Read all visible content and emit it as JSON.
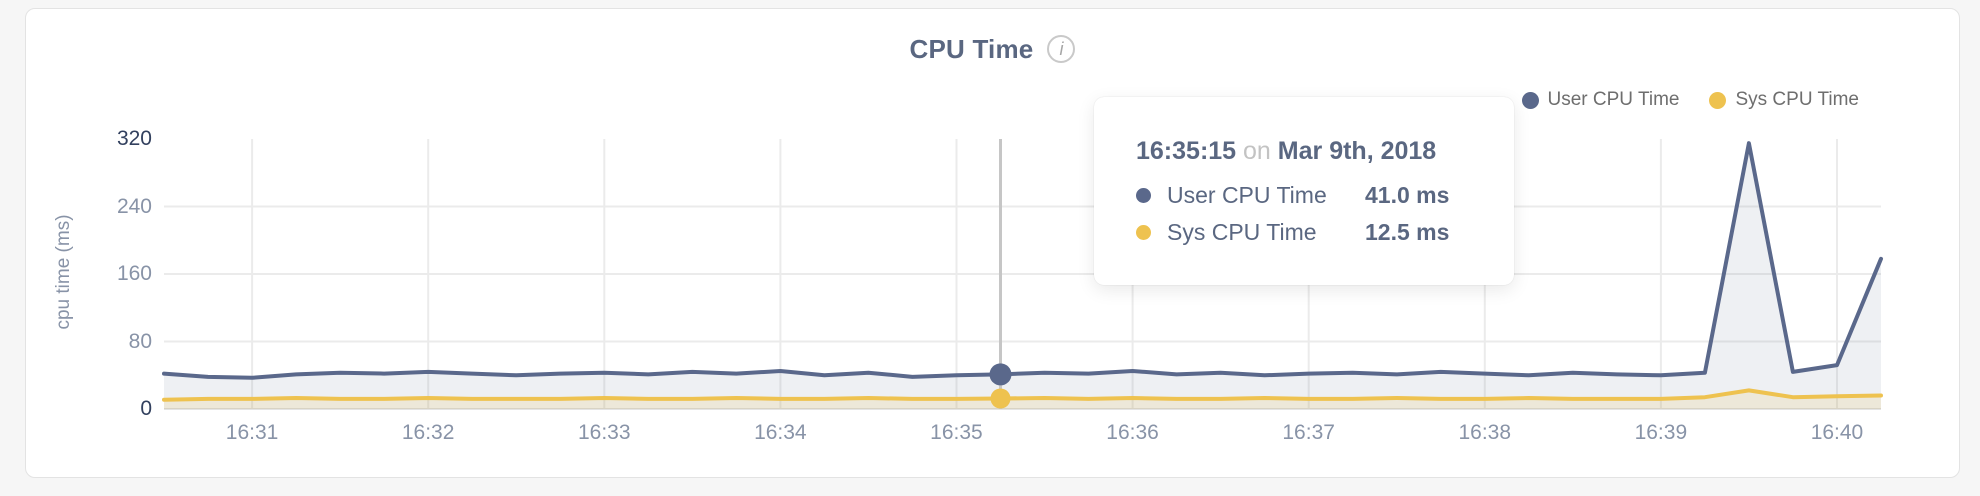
{
  "page": {
    "background": "#f6f6f6"
  },
  "header": {
    "title": "CPU Time",
    "info_icon": "info-circle-icon",
    "info_icon_glyph": "i"
  },
  "legend": {
    "items": [
      {
        "label": "User CPU Time",
        "color": "#5a688b"
      },
      {
        "label": "Sys CPU Time",
        "color": "#eec24f"
      }
    ]
  },
  "tooltip": {
    "time": "16:35:15",
    "connector": "on",
    "date": "Mar 9th, 2018",
    "rows": [
      {
        "label": "User CPU Time",
        "value": "41.0 ms",
        "color": "#5a688b"
      },
      {
        "label": "Sys CPU Time",
        "value": "12.5 ms",
        "color": "#eec24f"
      }
    ]
  },
  "chart_data": {
    "type": "area",
    "title": "CPU Time",
    "ylabel": "cpu time (ms)",
    "ylim": [
      0,
      320
    ],
    "y_ticks": [
      0,
      80,
      160,
      240,
      320
    ],
    "emphasized_y_ticks": [
      0,
      320
    ],
    "x_ticks": [
      "16:31",
      "16:32",
      "16:33",
      "16:34",
      "16:35",
      "16:36",
      "16:37",
      "16:38",
      "16:39",
      "16:40"
    ],
    "x_tick_seconds": [
      30,
      90,
      150,
      210,
      270,
      330,
      390,
      450,
      510,
      570
    ],
    "interval_seconds": 15,
    "grid": true,
    "grid_color": "#ebebeb",
    "baseline_color": "#e4e4e4",
    "crosshair_color": "#c6c6c6",
    "legend_position": "top-right",
    "highlight_index": 19,
    "highlight_time": "16:35:15",
    "times": [
      "16:30:30",
      "16:30:45",
      "16:31:00",
      "16:31:15",
      "16:31:30",
      "16:31:45",
      "16:32:00",
      "16:32:15",
      "16:32:30",
      "16:32:45",
      "16:33:00",
      "16:33:15",
      "16:33:30",
      "16:33:45",
      "16:34:00",
      "16:34:15",
      "16:34:30",
      "16:34:45",
      "16:35:00",
      "16:35:15",
      "16:35:30",
      "16:35:45",
      "16:36:00",
      "16:36:15",
      "16:36:30",
      "16:36:45",
      "16:37:00",
      "16:37:15",
      "16:37:30",
      "16:37:45",
      "16:38:00",
      "16:38:15",
      "16:38:30",
      "16:38:45",
      "16:39:00",
      "16:39:15",
      "16:39:30",
      "16:39:45",
      "16:40:00",
      "16:40:15"
    ],
    "series": [
      {
        "name": "User CPU Time",
        "color": "#5a688b",
        "fill": "rgba(90,104,139,0.10)",
        "values": [
          42,
          38,
          37,
          41,
          43,
          42,
          44,
          42,
          40,
          42,
          43,
          41,
          44,
          42,
          45,
          40,
          43,
          38,
          40,
          41,
          43,
          42,
          45,
          41,
          43,
          40,
          42,
          43,
          41,
          44,
          42,
          40,
          43,
          41,
          40,
          43,
          315,
          44,
          52,
          178
        ]
      },
      {
        "name": "Sys CPU Time",
        "color": "#eec24f",
        "fill": "rgba(238,194,79,0.16)",
        "values": [
          11,
          12,
          12,
          13,
          12,
          12,
          13,
          12,
          12,
          12,
          13,
          12,
          12,
          13,
          12,
          12,
          13,
          12,
          12,
          12.5,
          13,
          12,
          13,
          12,
          12,
          13,
          12,
          12,
          13,
          12,
          12,
          13,
          12,
          12,
          12,
          14,
          22,
          14,
          15,
          16
        ]
      }
    ]
  }
}
